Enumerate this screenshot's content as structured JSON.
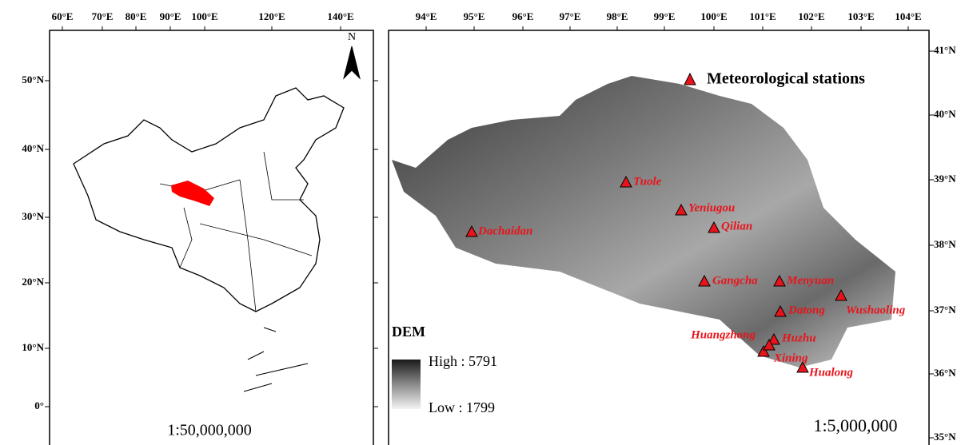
{
  "left_map": {
    "lon_labels": [
      "60°E",
      "70°E",
      "80°E",
      "90°E",
      "100°E",
      "120°E",
      "140°E"
    ],
    "lat_labels": [
      "50°N",
      "40°N",
      "30°N",
      "20°N",
      "10°N",
      "0°"
    ],
    "north": "N",
    "scale": "1:50,000,000"
  },
  "right_map": {
    "lon_labels": [
      "94°E",
      "95°E",
      "96°E",
      "97°E",
      "98°E",
      "99°E",
      "100°E",
      "101°E",
      "102°E",
      "103°E",
      "104°E"
    ],
    "lat_labels": [
      "41°N",
      "40°N",
      "39°N",
      "38°N",
      "37°N",
      "36°N",
      "35°N"
    ],
    "legend": "Meteorological stations",
    "dem": {
      "title": "DEM",
      "high": "High : 5791",
      "low": "Low : 1799"
    },
    "scale": "1:5,000,000",
    "stations": [
      "Tuole",
      "Yeniugou",
      "Qilian",
      "Dachaidan",
      "Gangcha",
      "Menyuan",
      "Datong",
      "Wushaoling",
      "Huangzhong",
      "Huzhu",
      "Xining",
      "Hualong"
    ]
  }
}
